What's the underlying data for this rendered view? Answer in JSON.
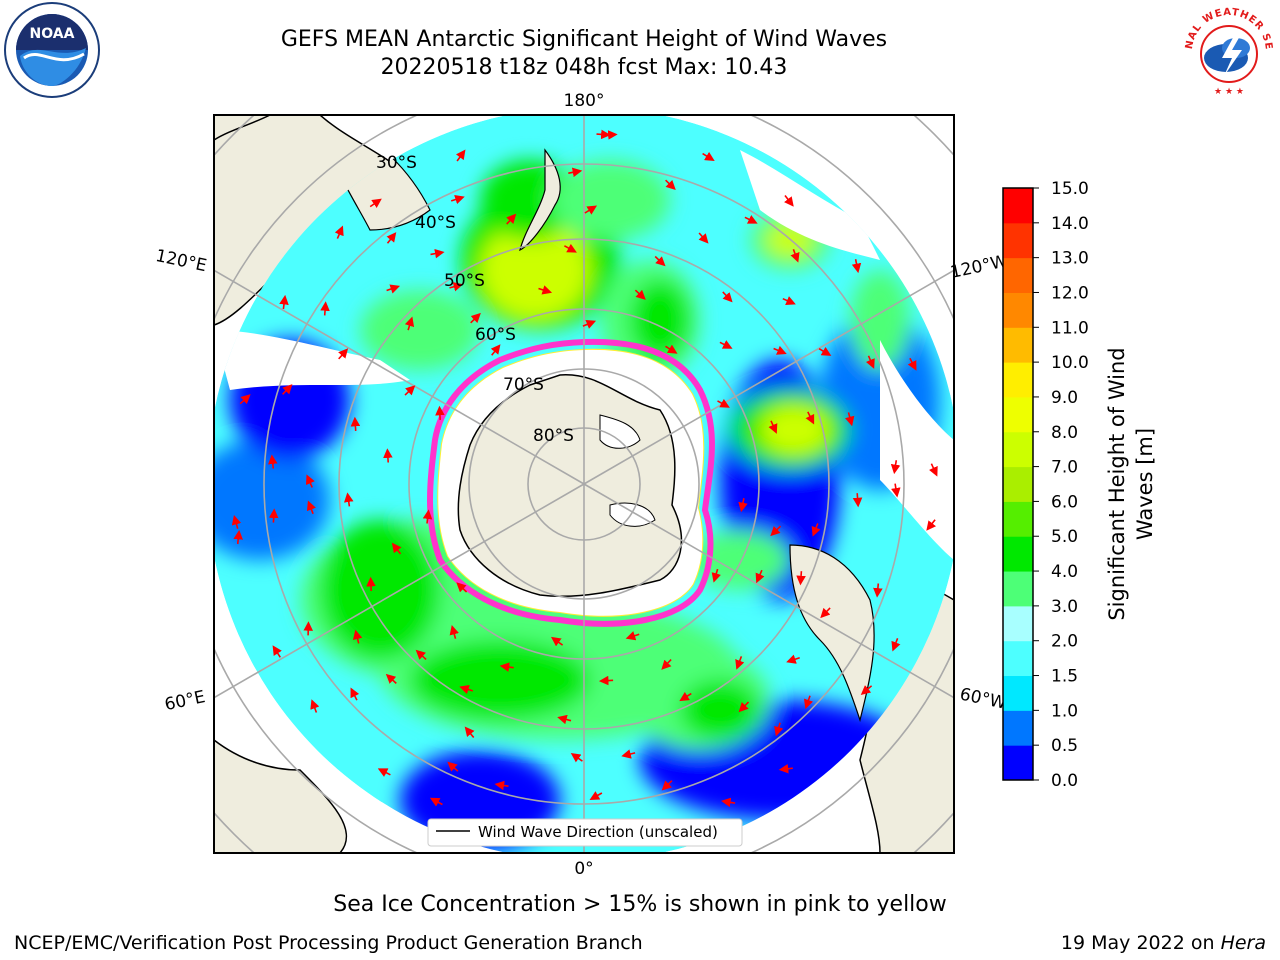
{
  "title": {
    "line1": "GEFS MEAN Antarctic Significant Height of Wind Waves",
    "line2": "20220518 t18z 048h fcst   Max: 10.43"
  },
  "logos": {
    "noaa": "NOAA",
    "nws": "NATIONAL WEATHER SERVICE"
  },
  "map": {
    "projection": "south-polar-stereographic",
    "longitude_labels": [
      "180°",
      "120°E",
      "120°W",
      "60°E",
      "60°W",
      "0°"
    ],
    "latitude_labels": [
      "30°S",
      "40°S",
      "50°S",
      "60°S",
      "70°S",
      "80°S"
    ],
    "legend_label": "Wind Wave Direction (unscaled)",
    "arrow_color": "#ff0000",
    "land_color": "#efedde",
    "sea_ice_colors": [
      "#ff33cc",
      "#ffee33"
    ]
  },
  "colorbar": {
    "title_line1": "Significant Height of Wind",
    "title_line2": "Waves [m]",
    "ticks": [
      "0.0",
      "0.5",
      "1.0",
      "1.5",
      "2.0",
      "3.0",
      "4.0",
      "5.0",
      "6.0",
      "7.0",
      "8.0",
      "9.0",
      "10.0",
      "11.0",
      "12.0",
      "13.0",
      "14.0",
      "15.0"
    ],
    "colors": [
      "#0000ff",
      "#0077ff",
      "#00e8ff",
      "#4dffff",
      "#a8ffff",
      "#4dff77",
      "#00e800",
      "#55ee00",
      "#aaee00",
      "#ccff00",
      "#eeff00",
      "#ffee00",
      "#ffbb00",
      "#ff8800",
      "#ff6600",
      "#ff3300",
      "#ff0000"
    ]
  },
  "footer": {
    "sea_ice_note": "Sea Ice Concentration > 15% is shown in pink to yellow",
    "credit": "NCEP/EMC/Verification Post Processing Product Generation Branch",
    "date": "19 May 2022 on",
    "host": "Hera"
  }
}
